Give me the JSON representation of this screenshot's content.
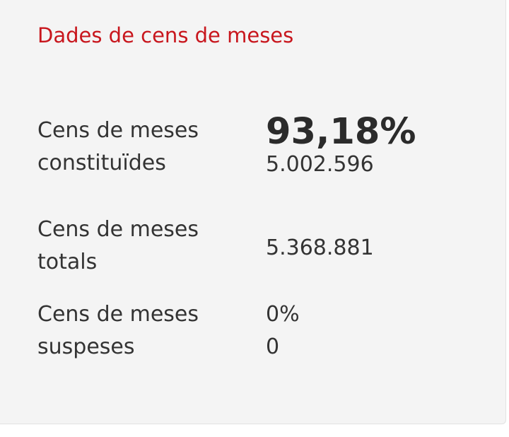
{
  "card": {
    "title": "Dades de cens de meses",
    "rows": [
      {
        "label_line1": "Cens de meses",
        "label_line2": "constituïdes",
        "percent": "93,18%",
        "count": "5.002.596"
      },
      {
        "label_line1": "Cens de meses",
        "label_line2": "totals",
        "count": "5.368.881"
      },
      {
        "label_line1": "Cens de meses",
        "label_line2": "suspeses",
        "percent": "0%",
        "count": "0"
      }
    ]
  }
}
